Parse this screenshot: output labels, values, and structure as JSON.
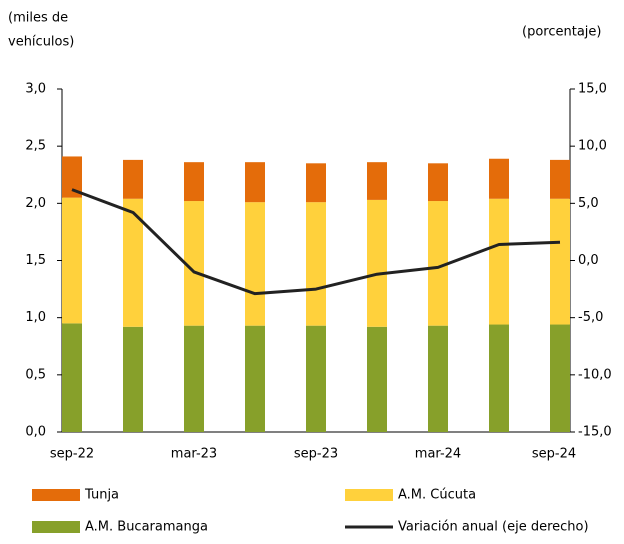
{
  "chart_data": {
    "type": "stacked-bar-line",
    "ylabel": [
      "(miles de",
      "vehículos)"
    ],
    "y2label": "(porcentaje)",
    "categories": [
      "sep-22",
      null,
      "mar-23",
      null,
      "sep-23",
      null,
      "mar-24",
      null,
      "sep-24"
    ],
    "series": [
      {
        "name": "A.M. Bucaramanga",
        "color": "#87a02a",
        "values": [
          0.95,
          0.92,
          0.93,
          0.93,
          0.93,
          0.92,
          0.93,
          0.94,
          0.94
        ]
      },
      {
        "name": "A.M. Cúcuta",
        "color": "#ffd13c",
        "values": [
          1.1,
          1.12,
          1.09,
          1.08,
          1.08,
          1.11,
          1.09,
          1.1,
          1.1
        ]
      },
      {
        "name": "Tunja",
        "color": "#e46c0a",
        "values": [
          0.36,
          0.34,
          0.34,
          0.35,
          0.34,
          0.33,
          0.33,
          0.35,
          0.34
        ]
      },
      {
        "name": "Variación anual (eje derecho)",
        "color": "#222222",
        "axis": "y2",
        "values": [
          6.2,
          4.2,
          -1.0,
          -2.9,
          -2.5,
          -1.2,
          -0.6,
          1.4,
          1.6
        ]
      }
    ],
    "ylim": [
      0,
      3
    ],
    "yticks": [
      {
        "value": 0,
        "label": "0,0"
      },
      {
        "value": 0.5,
        "label": "0,5"
      },
      {
        "value": 1,
        "label": "1,0"
      },
      {
        "value": 1.5,
        "label": "1,5"
      },
      {
        "value": 2,
        "label": "2,0"
      },
      {
        "value": 2.5,
        "label": "2,5"
      },
      {
        "value": 3,
        "label": "3,0"
      }
    ],
    "y2lim": [
      -15,
      15
    ],
    "y2ticks": [
      {
        "value": -15,
        "label": "-15,0"
      },
      {
        "value": -10,
        "label": "-10,0"
      },
      {
        "value": -5,
        "label": "-5,0"
      },
      {
        "value": 0,
        "label": "0,0"
      },
      {
        "value": 5,
        "label": "5,0"
      },
      {
        "value": 10,
        "label": "10,0"
      },
      {
        "value": 15,
        "label": "15,0"
      }
    ]
  }
}
